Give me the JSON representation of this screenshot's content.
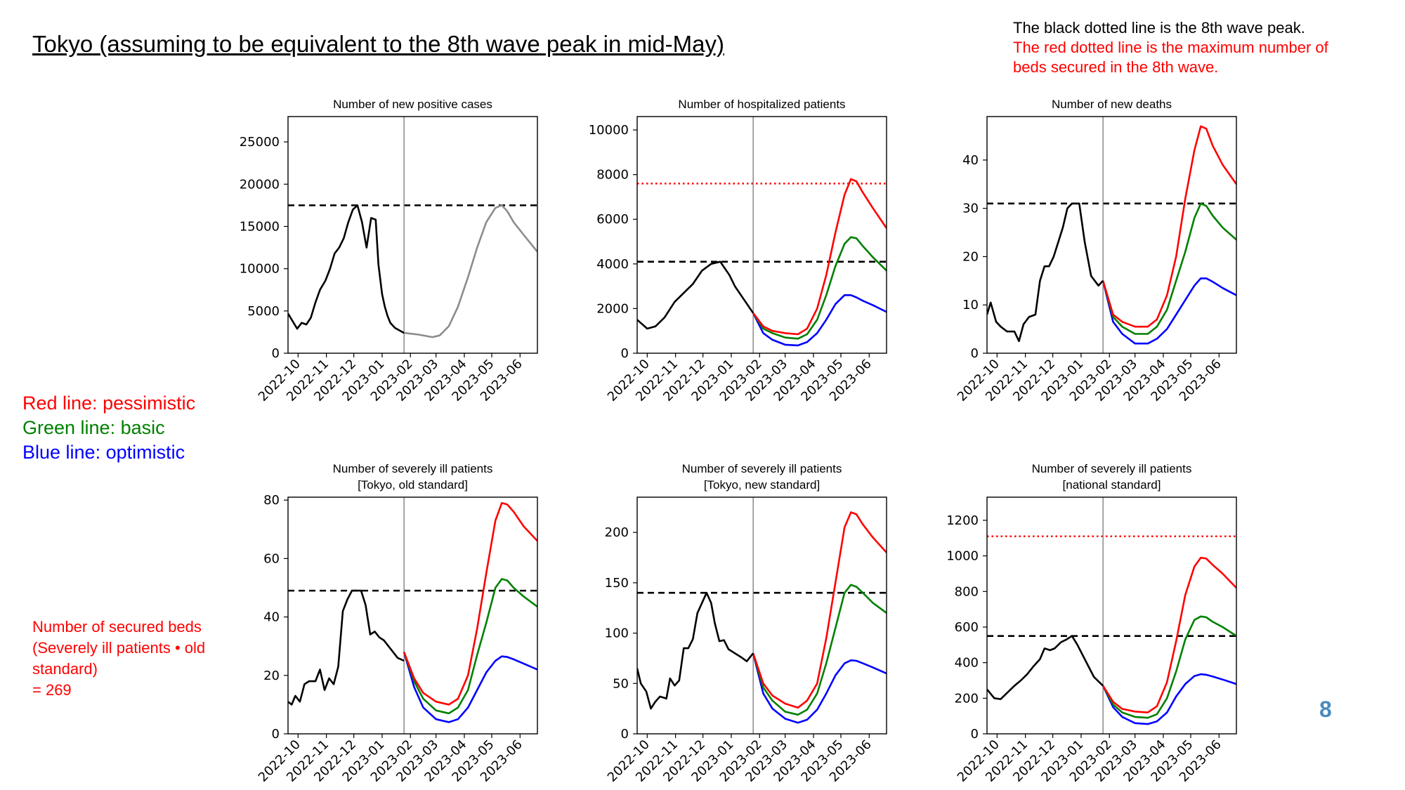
{
  "page": {
    "title": "Tokyo (assuming to be equivalent to the 8th wave peak in mid-May)",
    "note_black": "The black dotted line is the 8th wave peak.",
    "note_red": "The red dotted line is the maximum number of beds secured in the 8th wave.",
    "legend": {
      "red": "Red line: pessimistic",
      "green": "Green line: basic",
      "blue": "Blue line: optimistic"
    },
    "beds_note": [
      "Number of secured beds",
      "(Severely ill patients • old",
      "standard)",
      "= 269"
    ],
    "page_number": "8"
  },
  "colors": {
    "pessimistic": "#ff0000",
    "basic": "#008000",
    "optimistic": "#0000ff",
    "observed": "#000000",
    "projection_single": "#8c8c8c",
    "reference_black": "#000000",
    "reference_red": "#ff0000"
  },
  "chart_data": [
    {
      "type": "line",
      "title": [
        "Number of new positive cases"
      ],
      "x_ticks": [
        "2022-10",
        "2022-11",
        "2022-12",
        "2023-01",
        "2023-02",
        "2023-03",
        "2023-04",
        "2023-05",
        "2023-06"
      ],
      "xlim": [
        "2022-09-20",
        "2023-06-20"
      ],
      "ylim": [
        0,
        28000
      ],
      "y_ticks": [
        0,
        5000,
        10000,
        15000,
        20000,
        25000
      ],
      "vline_date": "2023-01-25",
      "reference_lines": [
        {
          "color": "black",
          "value": 17500
        }
      ],
      "observed": {
        "x": [
          "2022-09-20",
          "2022-09-25",
          "2022-09-30",
          "2022-10-05",
          "2022-10-10",
          "2022-10-15",
          "2022-10-20",
          "2022-10-25",
          "2022-10-31",
          "2022-11-05",
          "2022-11-10",
          "2022-11-15",
          "2022-11-20",
          "2022-11-25",
          "2022-11-30",
          "2022-12-05",
          "2022-12-10",
          "2022-12-15",
          "2022-12-20",
          "2022-12-25",
          "2022-12-28",
          "2023-01-01",
          "2023-01-04",
          "2023-01-07",
          "2023-01-10",
          "2023-01-15",
          "2023-01-20",
          "2023-01-25"
        ],
        "y": [
          4700,
          3800,
          2900,
          3600,
          3400,
          4200,
          6000,
          7500,
          8600,
          10000,
          11800,
          12500,
          13600,
          15500,
          17000,
          17500,
          15500,
          12500,
          16000,
          15800,
          10500,
          7000,
          5500,
          4400,
          3600,
          3000,
          2700,
          2400
        ]
      },
      "projection": {
        "x": [
          "2023-01-25",
          "2023-02-10",
          "2023-02-25",
          "2023-03-05",
          "2023-03-15",
          "2023-03-25",
          "2023-04-05",
          "2023-04-15",
          "2023-04-25",
          "2023-05-05",
          "2023-05-12",
          "2023-05-18",
          "2023-05-25",
          "2023-06-05",
          "2023-06-20"
        ],
        "y": [
          2400,
          2200,
          1900,
          2100,
          3200,
          5500,
          9000,
          12500,
          15500,
          17200,
          17500,
          16800,
          15500,
          14000,
          12000
        ]
      }
    },
    {
      "type": "line",
      "title": [
        "Number of hospitalized patients"
      ],
      "x_ticks": [
        "2022-10",
        "2022-11",
        "2022-12",
        "2023-01",
        "2023-02",
        "2023-03",
        "2023-04",
        "2023-05",
        "2023-06"
      ],
      "xlim": [
        "2022-09-20",
        "2023-06-20"
      ],
      "ylim": [
        0,
        10600
      ],
      "y_ticks": [
        0,
        2000,
        4000,
        6000,
        8000,
        10000
      ],
      "vline_date": "2023-01-25",
      "reference_lines": [
        {
          "color": "black",
          "value": 4100
        },
        {
          "color": "red",
          "value": 7600
        }
      ],
      "observed": {
        "x": [
          "2022-09-20",
          "2022-10-01",
          "2022-10-10",
          "2022-10-20",
          "2022-10-31",
          "2022-11-10",
          "2022-11-20",
          "2022-11-30",
          "2022-12-10",
          "2022-12-20",
          "2022-12-30",
          "2023-01-05",
          "2023-01-15",
          "2023-01-25"
        ],
        "y": [
          1500,
          1100,
          1200,
          1600,
          2300,
          2700,
          3100,
          3700,
          4000,
          4100,
          3500,
          3000,
          2400,
          1800
        ]
      },
      "projections": {
        "x": [
          "2023-01-25",
          "2023-02-05",
          "2023-02-15",
          "2023-03-01",
          "2023-03-15",
          "2023-03-25",
          "2023-04-05",
          "2023-04-15",
          "2023-04-25",
          "2023-05-05",
          "2023-05-12",
          "2023-05-18",
          "2023-05-25",
          "2023-06-05",
          "2023-06-20"
        ],
        "pessimistic": [
          1800,
          1200,
          1000,
          900,
          850,
          1100,
          2000,
          3500,
          5400,
          7100,
          7800,
          7700,
          7200,
          6500,
          5600
        ],
        "basic": [
          1800,
          1100,
          900,
          700,
          650,
          850,
          1500,
          2600,
          3900,
          4900,
          5200,
          5150,
          4800,
          4300,
          3700
        ],
        "optimistic": [
          1800,
          900,
          600,
          380,
          350,
          500,
          900,
          1500,
          2200,
          2600,
          2600,
          2500,
          2350,
          2150,
          1850
        ]
      }
    },
    {
      "type": "line",
      "title": [
        "Number of new deaths"
      ],
      "x_ticks": [
        "2022-10",
        "2022-11",
        "2022-12",
        "2023-01",
        "2023-02",
        "2023-03",
        "2023-04",
        "2023-05",
        "2023-06"
      ],
      "xlim": [
        "2022-09-20",
        "2023-06-20"
      ],
      "ylim": [
        0,
        49
      ],
      "y_ticks": [
        0,
        10,
        20,
        30,
        40
      ],
      "vline_date": "2023-01-25",
      "reference_lines": [
        {
          "color": "black",
          "value": 31
        }
      ],
      "observed": {
        "x": [
          "2022-09-20",
          "2022-09-24",
          "2022-09-30",
          "2022-10-05",
          "2022-10-12",
          "2022-10-20",
          "2022-10-25",
          "2022-10-30",
          "2022-11-05",
          "2022-11-12",
          "2022-11-17",
          "2022-11-22",
          "2022-11-27",
          "2022-12-02",
          "2022-12-07",
          "2022-12-12",
          "2022-12-17",
          "2022-12-22",
          "2022-12-26",
          "2022-12-30",
          "2023-01-05",
          "2023-01-12",
          "2023-01-20",
          "2023-01-25"
        ],
        "y": [
          8,
          10.5,
          6.5,
          5.5,
          4.5,
          4.5,
          2.5,
          6,
          7.5,
          8,
          15,
          18,
          18,
          20,
          23,
          26,
          30,
          31,
          31,
          31,
          23,
          16,
          14,
          15
        ]
      },
      "projections": {
        "x": [
          "2023-01-25",
          "2023-02-05",
          "2023-02-15",
          "2023-03-01",
          "2023-03-15",
          "2023-03-25",
          "2023-04-05",
          "2023-04-15",
          "2023-04-25",
          "2023-05-05",
          "2023-05-12",
          "2023-05-18",
          "2023-05-25",
          "2023-06-05",
          "2023-06-20"
        ],
        "pessimistic": [
          15,
          8,
          6.5,
          5.5,
          5.5,
          7,
          12,
          20,
          32,
          42,
          47,
          46.5,
          43,
          39,
          35
        ],
        "basic": [
          15,
          7.5,
          5.5,
          4,
          4,
          5.5,
          9,
          15,
          21,
          28,
          31,
          30.5,
          28.5,
          26,
          23.5
        ],
        "optimistic": [
          15,
          6.5,
          4,
          2,
          2,
          3,
          5,
          8,
          11,
          14,
          15.5,
          15.5,
          14.8,
          13.5,
          12
        ]
      }
    },
    {
      "type": "line",
      "title": [
        "Number of severely ill patients",
        "[Tokyo, old standard]"
      ],
      "x_ticks": [
        "2022-10",
        "2022-11",
        "2022-12",
        "2023-01",
        "2023-02",
        "2023-03",
        "2023-04",
        "2023-05",
        "2023-06"
      ],
      "xlim": [
        "2022-09-20",
        "2023-06-20"
      ],
      "ylim": [
        0,
        81
      ],
      "y_ticks": [
        0,
        20,
        40,
        60,
        80
      ],
      "vline_date": "2023-01-25",
      "reference_lines": [
        {
          "color": "black",
          "value": 49
        }
      ],
      "observed": {
        "x": [
          "2022-09-20",
          "2022-09-24",
          "2022-09-28",
          "2022-10-03",
          "2022-10-08",
          "2022-10-13",
          "2022-10-20",
          "2022-10-25",
          "2022-10-30",
          "2022-11-04",
          "2022-11-09",
          "2022-11-14",
          "2022-11-19",
          "2022-11-24",
          "2022-11-29",
          "2022-12-04",
          "2022-12-09",
          "2022-12-14",
          "2022-12-19",
          "2022-12-24",
          "2022-12-29",
          "2023-01-03",
          "2023-01-08",
          "2023-01-13",
          "2023-01-18",
          "2023-01-25"
        ],
        "y": [
          11,
          10,
          13,
          11,
          17,
          18,
          18,
          22,
          15,
          19,
          17,
          23,
          42,
          46,
          49,
          49,
          49,
          44,
          34,
          35,
          33,
          32,
          30,
          28,
          26,
          25
        ]
      },
      "projections": {
        "x": [
          "2023-01-25",
          "2023-02-05",
          "2023-02-15",
          "2023-03-01",
          "2023-03-15",
          "2023-03-25",
          "2023-04-05",
          "2023-04-15",
          "2023-04-25",
          "2023-05-05",
          "2023-05-12",
          "2023-05-18",
          "2023-05-25",
          "2023-06-05",
          "2023-06-20"
        ],
        "pessimistic": [
          28,
          19,
          14,
          11,
          10,
          12,
          20,
          36,
          55,
          73,
          79,
          78.5,
          76,
          71,
          66
        ],
        "basic": [
          28,
          18,
          12,
          8,
          7,
          9,
          15,
          27,
          38,
          50,
          53,
          52.5,
          50,
          47,
          43.5
        ],
        "optimistic": [
          28,
          16,
          9,
          5,
          4,
          5,
          9,
          15,
          21,
          25,
          26.5,
          26.3,
          25.5,
          24,
          22
        ]
      }
    },
    {
      "type": "line",
      "title": [
        "Number of severely ill patients",
        "[Tokyo, new standard]"
      ],
      "x_ticks": [
        "2022-10",
        "2022-11",
        "2022-12",
        "2023-01",
        "2023-02",
        "2023-03",
        "2023-04",
        "2023-05",
        "2023-06"
      ],
      "xlim": [
        "2022-09-20",
        "2023-06-20"
      ],
      "ylim": [
        0,
        235
      ],
      "y_ticks": [
        0,
        50,
        100,
        150,
        200
      ],
      "vline_date": "2023-01-25",
      "reference_lines": [
        {
          "color": "black",
          "value": 140
        }
      ],
      "observed": {
        "x": [
          "2022-09-20",
          "2022-09-24",
          "2022-09-30",
          "2022-10-05",
          "2022-10-10",
          "2022-10-15",
          "2022-10-22",
          "2022-10-26",
          "2022-10-31",
          "2022-11-05",
          "2022-11-10",
          "2022-11-15",
          "2022-11-20",
          "2022-11-25",
          "2022-11-30",
          "2022-12-05",
          "2022-12-10",
          "2022-12-14",
          "2022-12-19",
          "2022-12-24",
          "2022-12-29",
          "2023-01-05",
          "2023-01-12",
          "2023-01-18",
          "2023-01-25"
        ],
        "y": [
          65,
          50,
          42,
          25,
          32,
          37,
          35,
          55,
          48,
          53,
          85,
          85,
          94,
          120,
          130,
          140,
          130,
          110,
          92,
          93,
          84,
          80,
          76,
          72,
          80
        ]
      },
      "projections": {
        "x": [
          "2023-01-25",
          "2023-02-05",
          "2023-02-15",
          "2023-03-01",
          "2023-03-15",
          "2023-03-25",
          "2023-04-05",
          "2023-04-15",
          "2023-04-25",
          "2023-05-05",
          "2023-05-12",
          "2023-05-18",
          "2023-05-25",
          "2023-06-05",
          "2023-06-20"
        ],
        "pessimistic": [
          80,
          50,
          38,
          30,
          26,
          33,
          50,
          95,
          150,
          205,
          220,
          218,
          208,
          195,
          180
        ],
        "basic": [
          80,
          46,
          33,
          22,
          19,
          24,
          40,
          70,
          105,
          140,
          148,
          146,
          140,
          130,
          120
        ],
        "optimistic": [
          80,
          40,
          25,
          15,
          11,
          14,
          24,
          40,
          58,
          70,
          73,
          72.5,
          70,
          66,
          60
        ]
      }
    },
    {
      "type": "line",
      "title": [
        "Number of severely ill patients",
        "[national standard]"
      ],
      "x_ticks": [
        "2022-10",
        "2022-11",
        "2022-12",
        "2023-01",
        "2023-02",
        "2023-03",
        "2023-04",
        "2023-05",
        "2023-06"
      ],
      "xlim": [
        "2022-09-20",
        "2023-06-20"
      ],
      "ylim": [
        0,
        1330
      ],
      "y_ticks": [
        0,
        200,
        400,
        600,
        800,
        1000,
        1200
      ],
      "vline_date": "2023-01-25",
      "reference_lines": [
        {
          "color": "black",
          "value": 550
        },
        {
          "color": "red",
          "value": 1110
        }
      ],
      "observed": {
        "x": [
          "2022-09-20",
          "2022-09-28",
          "2022-10-05",
          "2022-10-12",
          "2022-10-20",
          "2022-10-27",
          "2022-11-03",
          "2022-11-10",
          "2022-11-17",
          "2022-11-22",
          "2022-11-28",
          "2022-12-03",
          "2022-12-10",
          "2022-12-16",
          "2022-12-22",
          "2022-12-28",
          "2023-01-05",
          "2023-01-15",
          "2023-01-25"
        ],
        "y": [
          250,
          200,
          195,
          230,
          270,
          300,
          335,
          380,
          420,
          480,
          470,
          480,
          515,
          530,
          550,
          500,
          420,
          320,
          270
        ]
      },
      "projections": {
        "x": [
          "2023-01-25",
          "2023-02-05",
          "2023-02-15",
          "2023-03-01",
          "2023-03-15",
          "2023-03-25",
          "2023-04-05",
          "2023-04-15",
          "2023-04-25",
          "2023-05-05",
          "2023-05-12",
          "2023-05-18",
          "2023-05-25",
          "2023-06-05",
          "2023-06-20"
        ],
        "pessimistic": [
          270,
          180,
          140,
          125,
          120,
          155,
          290,
          520,
          780,
          940,
          990,
          985,
          950,
          900,
          820
        ],
        "basic": [
          270,
          165,
          120,
          95,
          90,
          110,
          200,
          350,
          530,
          640,
          660,
          655,
          630,
          600,
          550
        ],
        "optimistic": [
          270,
          150,
          95,
          60,
          55,
          70,
          120,
          210,
          280,
          325,
          335,
          332,
          322,
          305,
          280
        ]
      }
    }
  ]
}
